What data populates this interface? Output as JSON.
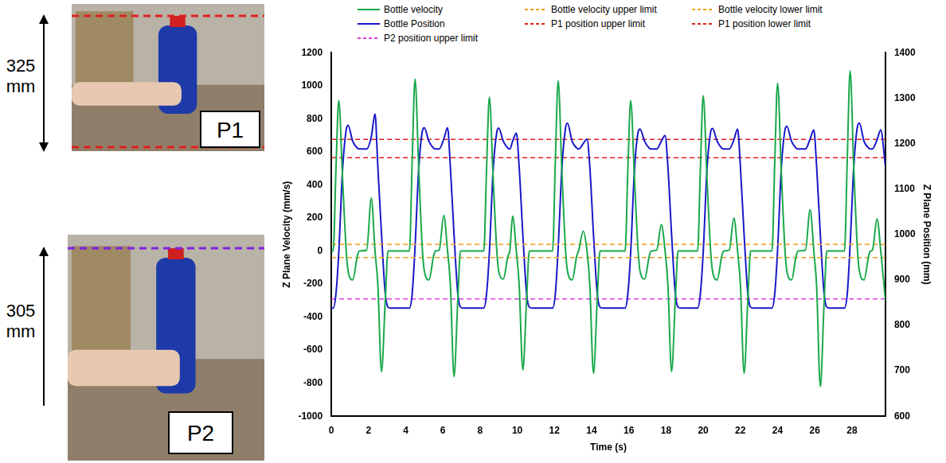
{
  "photo_panels": [
    {
      "label": "P1",
      "dimension": "325 mm"
    },
    {
      "label": "P2",
      "dimension": "305 mm"
    }
  ],
  "chart_data": {
    "type": "line",
    "x_label": "Time (s)",
    "y_label": "Z Plane Velocity (mm/s)",
    "y2_label": "Z Plane Position (mm)",
    "xlim": [
      0,
      29.8
    ],
    "xticks": [
      0,
      2,
      4,
      6,
      8,
      10,
      12,
      14,
      16,
      18,
      20,
      22,
      24,
      26,
      28
    ],
    "ylim": [
      -1000,
      1200
    ],
    "yticks": [
      -1000,
      -800,
      -600,
      -400,
      -200,
      0,
      200,
      400,
      600,
      800,
      1000,
      1200
    ],
    "y2lim": [
      600,
      1400
    ],
    "y2ticks": [
      600,
      700,
      800,
      900,
      1000,
      1100,
      1200,
      1300,
      1400
    ],
    "grid": false,
    "legend": "top",
    "x": [
      0,
      0.1,
      0.25,
      0.4,
      0.6,
      0.8,
      0.9,
      1.15,
      1.4,
      1.5,
      1.9,
      2.15,
      2.35,
      2.5,
      2.7,
      2.9,
      3.05,
      3.2,
      4.2,
      4.35,
      4.5,
      4.7,
      4.9,
      5.0,
      5.25,
      5.5,
      5.6,
      5.8,
      6.05,
      6.25,
      6.4,
      6.6,
      6.8,
      6.95,
      7.1,
      8.2,
      8.35,
      8.5,
      8.7,
      8.9,
      9.0,
      9.25,
      9.5,
      9.6,
      9.75,
      9.95,
      10.1,
      10.3,
      10.5,
      10.65,
      10.8,
      11.9,
      12.05,
      12.2,
      12.4,
      12.6,
      12.7,
      12.95,
      13.2,
      13.3,
      13.55,
      13.75,
      13.9,
      14.1,
      14.3,
      14.45,
      14.6,
      15.8,
      15.95,
      16.1,
      16.3,
      16.5,
      16.6,
      16.85,
      17.1,
      17.2,
      17.5,
      17.75,
      17.95,
      18.1,
      18.3,
      18.5,
      18.65,
      18.8,
      19.7,
      19.85,
      20.0,
      20.2,
      20.4,
      20.5,
      20.75,
      21.0,
      21.1,
      21.4,
      21.65,
      21.85,
      22.0,
      22.2,
      22.4,
      22.55,
      22.7,
      23.7,
      23.85,
      24.0,
      24.2,
      24.4,
      24.5,
      24.75,
      25.0,
      25.1,
      25.5,
      25.75,
      25.95,
      26.1,
      26.3,
      26.5,
      26.65,
      26.8,
      27.6,
      27.75,
      27.9,
      28.1,
      28.3,
      28.4,
      28.65,
      28.9,
      29.0,
      29.1,
      29.35,
      29.55,
      29.8
    ],
    "series": [
      {
        "name": "Bottle velocity",
        "color": "#1aa84a",
        "axis": "y",
        "line_style": "solid",
        "marker": "none",
        "values": [
          0,
          0,
          500,
          910,
          450,
          0,
          -120,
          -175,
          -30,
          0,
          5,
          320,
          0,
          -200,
          -730,
          -300,
          0,
          0,
          0,
          550,
          1040,
          500,
          0,
          -120,
          -175,
          -30,
          0,
          5,
          215,
          0,
          -200,
          -760,
          -300,
          0,
          0,
          0,
          500,
          930,
          450,
          0,
          -120,
          -170,
          -30,
          0,
          210,
          0,
          -200,
          -720,
          -300,
          0,
          0,
          0,
          550,
          1030,
          480,
          0,
          -120,
          -175,
          -30,
          0,
          120,
          0,
          -200,
          -740,
          -300,
          0,
          0,
          0,
          500,
          910,
          450,
          0,
          -120,
          -170,
          -30,
          0,
          5,
          160,
          0,
          -200,
          -730,
          -300,
          0,
          0,
          0,
          500,
          940,
          450,
          0,
          -120,
          -175,
          -30,
          0,
          5,
          200,
          0,
          -200,
          -740,
          -300,
          0,
          0,
          0,
          540,
          1015,
          480,
          0,
          -120,
          -175,
          -30,
          0,
          5,
          250,
          0,
          -210,
          -820,
          -320,
          0,
          0,
          0,
          560,
          1090,
          500,
          0,
          -120,
          -175,
          -30,
          0,
          5,
          195,
          0,
          -300
        ]
      },
      {
        "name": "Bottle velocity upper limit",
        "color": "#f5a020",
        "axis": "y",
        "line_style": "dashed",
        "marker": "none",
        "x": [
          0,
          29.8
        ],
        "values": [
          40,
          40
        ]
      },
      {
        "name": "Bottle velocity lower limit",
        "color": "#f5a020",
        "axis": "y",
        "line_style": "dashed",
        "marker": "none",
        "x": [
          0,
          29.8
        ],
        "values": [
          -40,
          -40
        ]
      },
      {
        "name": "Bottle Position",
        "color": "#1818c8",
        "axis": "y2",
        "line_style": "solid",
        "marker": "none",
        "values": [
          838,
          838,
          870,
          960,
          1140,
          1230,
          1240,
          1205,
          1190,
          1188,
          1188,
          1215,
          1265,
          1150,
          1000,
          870,
          840,
          838,
          838,
          870,
          970,
          1145,
          1228,
          1235,
          1205,
          1190,
          1188,
          1188,
          1210,
          1235,
          1150,
          1000,
          870,
          840,
          838,
          838,
          870,
          960,
          1140,
          1225,
          1234,
          1205,
          1190,
          1188,
          1205,
          1223,
          1150,
          1000,
          870,
          840,
          838,
          838,
          870,
          970,
          1145,
          1235,
          1245,
          1205,
          1190,
          1188,
          1200,
          1210,
          1150,
          1000,
          870,
          840,
          838,
          838,
          870,
          960,
          1140,
          1225,
          1232,
          1205,
          1190,
          1188,
          1188,
          1205,
          1218,
          1150,
          1000,
          870,
          840,
          838,
          838,
          870,
          960,
          1140,
          1225,
          1233,
          1205,
          1190,
          1188,
          1188,
          1208,
          1232,
          1150,
          1000,
          870,
          840,
          838,
          838,
          870,
          965,
          1145,
          1230,
          1238,
          1205,
          1190,
          1188,
          1188,
          1210,
          1230,
          1150,
          1000,
          870,
          840,
          838,
          838,
          870,
          975,
          1150,
          1238,
          1245,
          1205,
          1190,
          1188,
          1188,
          1208,
          1230,
          1150
        ]
      },
      {
        "name": "P1 position upper limit",
        "color": "#e0201a",
        "axis": "y2",
        "line_style": "dashed",
        "marker": "none",
        "x": [
          0,
          29.8
        ],
        "values": [
          1209,
          1209
        ]
      },
      {
        "name": "P1 position lower limit",
        "color": "#e0201a",
        "axis": "y2",
        "line_style": "dashed",
        "marker": "none",
        "x": [
          0,
          29.8
        ],
        "values": [
          1169,
          1169
        ]
      },
      {
        "name": "P2 position upper limit",
        "color": "#e040e0",
        "axis": "y2",
        "line_style": "dashed",
        "marker": "none",
        "x": [
          0,
          29.8
        ],
        "values": [
          858,
          858
        ]
      }
    ]
  }
}
